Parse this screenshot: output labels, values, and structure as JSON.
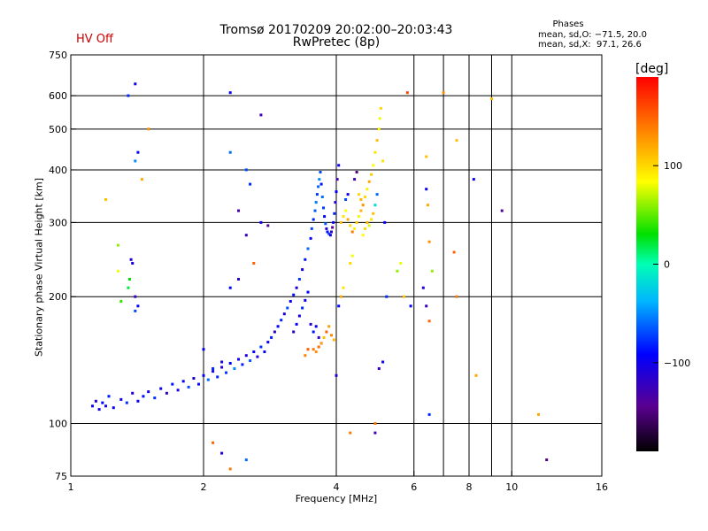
{
  "header": {
    "title": "Tromsø 20170209 20:02:00–20:03:43",
    "subtitle": "RwPretec (8p)",
    "hv_status": "HV Off",
    "hv_color": "#cc0000"
  },
  "legend_info": {
    "heading": "Phases",
    "line_o": "mean, sd,O: −71.5, 20.0",
    "line_x": "mean, sd,X:  97.1, 26.6"
  },
  "colorbar": {
    "label": "[deg]",
    "range": [
      -190,
      190
    ],
    "tick_labels": [
      "100",
      "0",
      "−100"
    ],
    "tick_values": [
      100,
      0,
      -100
    ]
  },
  "chart_data": {
    "type": "scatter",
    "xlabel": "Frequency [MHz]",
    "ylabel": "Stationary phase Virtual Height [km]",
    "x_scale": "log",
    "y_scale": "log",
    "xlim": [
      1,
      16
    ],
    "ylim": [
      75,
      750
    ],
    "grid": true,
    "x_tick_labels": [
      "1",
      "2",
      "4",
      "6",
      "8",
      "10",
      "16"
    ],
    "x_tick_values": [
      1,
      2,
      4,
      6,
      8,
      10,
      16
    ],
    "x_grid_values": [
      2,
      4,
      6,
      7,
      8,
      9,
      10
    ],
    "y_tick_labels": [
      "75",
      "100",
      "200",
      "300",
      "400",
      "500",
      "600",
      "750"
    ],
    "y_tick_values": [
      75,
      100,
      200,
      300,
      400,
      500,
      600,
      750
    ],
    "points": [
      [
        1.12,
        110,
        -95
      ],
      [
        1.14,
        113,
        -115
      ],
      [
        1.16,
        108,
        -100
      ],
      [
        1.18,
        112,
        -90
      ],
      [
        1.2,
        110,
        -105
      ],
      [
        1.22,
        116,
        -85
      ],
      [
        1.25,
        109,
        -95
      ],
      [
        1.3,
        114,
        -100
      ],
      [
        1.34,
        112,
        -80
      ],
      [
        1.38,
        118,
        -110
      ],
      [
        1.42,
        113,
        -95
      ],
      [
        1.46,
        116,
        -88
      ],
      [
        1.5,
        119,
        -102
      ],
      [
        1.55,
        115,
        -78
      ],
      [
        1.6,
        121,
        -97
      ],
      [
        1.65,
        118,
        -120
      ],
      [
        1.7,
        124,
        -85
      ],
      [
        1.75,
        120,
        -105
      ],
      [
        1.8,
        126,
        -92
      ],
      [
        1.85,
        122,
        -70
      ],
      [
        1.9,
        128,
        -110
      ],
      [
        1.95,
        124,
        -88
      ],
      [
        2.0,
        130,
        -96
      ],
      [
        2.05,
        127,
        -60
      ],
      [
        2.1,
        133,
        -100
      ],
      [
        2.15,
        129,
        -80
      ],
      [
        2.2,
        136,
        -115
      ],
      [
        2.25,
        132,
        -75
      ],
      [
        2.3,
        139,
        -92
      ],
      [
        2.35,
        135,
        -50
      ],
      [
        2.4,
        142,
        -98
      ],
      [
        2.45,
        138,
        -82
      ],
      [
        2.5,
        145,
        -108
      ],
      [
        2.55,
        141,
        -65
      ],
      [
        2.6,
        148,
        -90
      ],
      [
        2.65,
        144,
        -110
      ],
      [
        2.7,
        152,
        -78
      ],
      [
        2.75,
        148,
        -95
      ],
      [
        2.8,
        156,
        -100
      ],
      [
        2.85,
        160,
        -85
      ],
      [
        2.9,
        165,
        -118
      ],
      [
        2.95,
        170,
        -92
      ],
      [
        3.0,
        176,
        -80
      ],
      [
        3.05,
        182,
        -105
      ],
      [
        3.1,
        188,
        -70
      ],
      [
        3.15,
        195,
        -95
      ],
      [
        3.2,
        202,
        -88
      ],
      [
        3.25,
        210,
        -110
      ],
      [
        3.3,
        220,
        -75
      ],
      [
        3.35,
        232,
        -98
      ],
      [
        3.4,
        245,
        -85
      ],
      [
        3.45,
        260,
        -60
      ],
      [
        3.5,
        275,
        -90
      ],
      [
        3.52,
        290,
        -70
      ],
      [
        3.55,
        305,
        -80
      ],
      [
        3.58,
        320,
        -65
      ],
      [
        3.6,
        335,
        -55
      ],
      [
        3.62,
        350,
        -75
      ],
      [
        3.64,
        365,
        -60
      ],
      [
        3.66,
        380,
        -50
      ],
      [
        3.68,
        395,
        -70
      ],
      [
        3.7,
        370,
        -85
      ],
      [
        3.72,
        345,
        -58
      ],
      [
        3.74,
        325,
        -72
      ],
      [
        3.76,
        310,
        -95
      ],
      [
        3.78,
        298,
        -65
      ],
      [
        3.8,
        290,
        -110
      ],
      [
        3.82,
        285,
        -90
      ],
      [
        3.85,
        282,
        -70
      ],
      [
        3.88,
        280,
        -100
      ],
      [
        3.9,
        285,
        -120
      ],
      [
        3.92,
        292,
        -140
      ],
      [
        3.94,
        300,
        -95
      ],
      [
        3.96,
        315,
        -80
      ],
      [
        3.98,
        335,
        -110
      ],
      [
        4.0,
        355,
        -90
      ],
      [
        4.02,
        380,
        -130
      ],
      [
        4.05,
        410,
        -100
      ],
      [
        3.2,
        165,
        -115
      ],
      [
        3.25,
        172,
        -95
      ],
      [
        3.3,
        180,
        -105
      ],
      [
        3.35,
        188,
        -80
      ],
      [
        3.4,
        196,
        -100
      ],
      [
        3.45,
        205,
        -90
      ],
      [
        3.5,
        172,
        -110
      ],
      [
        3.55,
        165,
        -85
      ],
      [
        3.6,
        170,
        -95
      ],
      [
        3.65,
        160,
        -120
      ],
      [
        3.7,
        155,
        -90
      ],
      [
        3.55,
        150,
        140
      ],
      [
        3.6,
        148,
        130
      ],
      [
        3.65,
        152,
        145
      ],
      [
        3.7,
        155,
        120
      ],
      [
        3.75,
        160,
        110
      ],
      [
        3.8,
        165,
        150
      ],
      [
        3.85,
        170,
        125
      ],
      [
        3.9,
        162,
        135
      ],
      [
        3.95,
        158,
        115
      ],
      [
        3.4,
        145,
        135
      ],
      [
        3.45,
        150,
        150
      ],
      [
        4.1,
        300,
        110
      ],
      [
        4.15,
        310,
        95
      ],
      [
        4.2,
        320,
        85
      ],
      [
        4.25,
        305,
        120
      ],
      [
        4.3,
        295,
        100
      ],
      [
        4.35,
        285,
        140
      ],
      [
        4.4,
        290,
        90
      ],
      [
        4.45,
        300,
        105
      ],
      [
        4.5,
        310,
        80
      ],
      [
        4.55,
        320,
        115
      ],
      [
        4.6,
        330,
        130
      ],
      [
        4.65,
        345,
        100
      ],
      [
        4.7,
        360,
        90
      ],
      [
        4.75,
        375,
        120
      ],
      [
        4.8,
        390,
        105
      ],
      [
        4.85,
        410,
        85
      ],
      [
        4.9,
        440,
        95
      ],
      [
        4.95,
        470,
        110
      ],
      [
        5.0,
        500,
        90
      ],
      [
        5.02,
        530,
        80
      ],
      [
        5.05,
        560,
        100
      ],
      [
        4.6,
        280,
        85
      ],
      [
        4.65,
        290,
        100
      ],
      [
        4.7,
        300,
        115
      ],
      [
        4.75,
        295,
        75
      ],
      [
        4.8,
        305,
        95
      ],
      [
        4.85,
        315,
        110
      ],
      [
        4.9,
        330,
        -20
      ],
      [
        4.95,
        350,
        -60
      ],
      [
        4.5,
        350,
        100
      ],
      [
        4.55,
        340,
        115
      ],
      [
        4.4,
        380,
        -130
      ],
      [
        4.45,
        395,
        -150
      ],
      [
        4.2,
        340,
        -70
      ],
      [
        4.25,
        350,
        -100
      ],
      [
        4.1,
        200,
        120
      ],
      [
        4.15,
        210,
        95
      ],
      [
        4.05,
        190,
        -90
      ],
      [
        4.0,
        130,
        -110
      ],
      [
        4.3,
        240,
        100
      ],
      [
        4.35,
        250,
        80
      ],
      [
        5.1,
        420,
        95
      ],
      [
        5.15,
        300,
        -95
      ],
      [
        1.35,
        600,
        -80
      ],
      [
        1.4,
        640,
        -100
      ],
      [
        1.5,
        500,
        130
      ],
      [
        1.45,
        380,
        120
      ],
      [
        1.4,
        420,
        -50
      ],
      [
        1.42,
        440,
        -90
      ],
      [
        1.35,
        210,
        20
      ],
      [
        1.36,
        220,
        30
      ],
      [
        1.37,
        245,
        -110
      ],
      [
        1.38,
        240,
        -105
      ],
      [
        1.4,
        200,
        -120
      ],
      [
        1.42,
        190,
        -95
      ],
      [
        1.4,
        185,
        -70
      ],
      [
        1.3,
        195,
        40
      ],
      [
        1.28,
        265,
        60
      ],
      [
        1.28,
        230,
        80
      ],
      [
        1.2,
        340,
        110
      ],
      [
        2.1,
        90,
        150
      ],
      [
        2.2,
        85,
        -110
      ],
      [
        2.3,
        78,
        140
      ],
      [
        2.5,
        82,
        -60
      ],
      [
        2.3,
        610,
        -90
      ],
      [
        2.7,
        540,
        -130
      ],
      [
        2.5,
        400,
        -70
      ],
      [
        2.55,
        370,
        -80
      ],
      [
        2.3,
        440,
        -60
      ],
      [
        2.4,
        320,
        -130
      ],
      [
        2.7,
        300,
        -100
      ],
      [
        2.8,
        295,
        -140
      ],
      [
        2.5,
        280,
        -120
      ],
      [
        2.6,
        240,
        150
      ],
      [
        2.4,
        220,
        -115
      ],
      [
        2.3,
        210,
        -90
      ],
      [
        2.2,
        140,
        -105
      ],
      [
        2.1,
        135,
        -80
      ],
      [
        2.0,
        150,
        -95
      ],
      [
        4.3,
        95,
        140
      ],
      [
        4.9,
        100,
        140
      ],
      [
        4.9,
        95,
        -130
      ],
      [
        5.8,
        610,
        160
      ],
      [
        5.5,
        230,
        60
      ],
      [
        5.6,
        240,
        80
      ],
      [
        5.7,
        200,
        110
      ],
      [
        5.9,
        190,
        -90
      ],
      [
        6.4,
        430,
        110
      ],
      [
        6.4,
        360,
        -100
      ],
      [
        6.45,
        330,
        120
      ],
      [
        6.5,
        270,
        130
      ],
      [
        6.6,
        230,
        60
      ],
      [
        6.3,
        210,
        -110
      ],
      [
        6.4,
        190,
        -120
      ],
      [
        6.5,
        175,
        150
      ],
      [
        6.5,
        105,
        -80
      ],
      [
        7.0,
        610,
        130
      ],
      [
        7.5,
        470,
        110
      ],
      [
        7.4,
        255,
        150
      ],
      [
        7.5,
        200,
        140
      ],
      [
        8.2,
        380,
        -100
      ],
      [
        8.3,
        130,
        120
      ],
      [
        9.5,
        320,
        -140
      ],
      [
        11.5,
        105,
        120
      ],
      [
        12.0,
        82,
        -150
      ],
      [
        9.0,
        590,
        110
      ],
      [
        5.2,
        200,
        -80
      ],
      [
        5.1,
        140,
        -100
      ],
      [
        5.0,
        135,
        -120
      ]
    ]
  }
}
